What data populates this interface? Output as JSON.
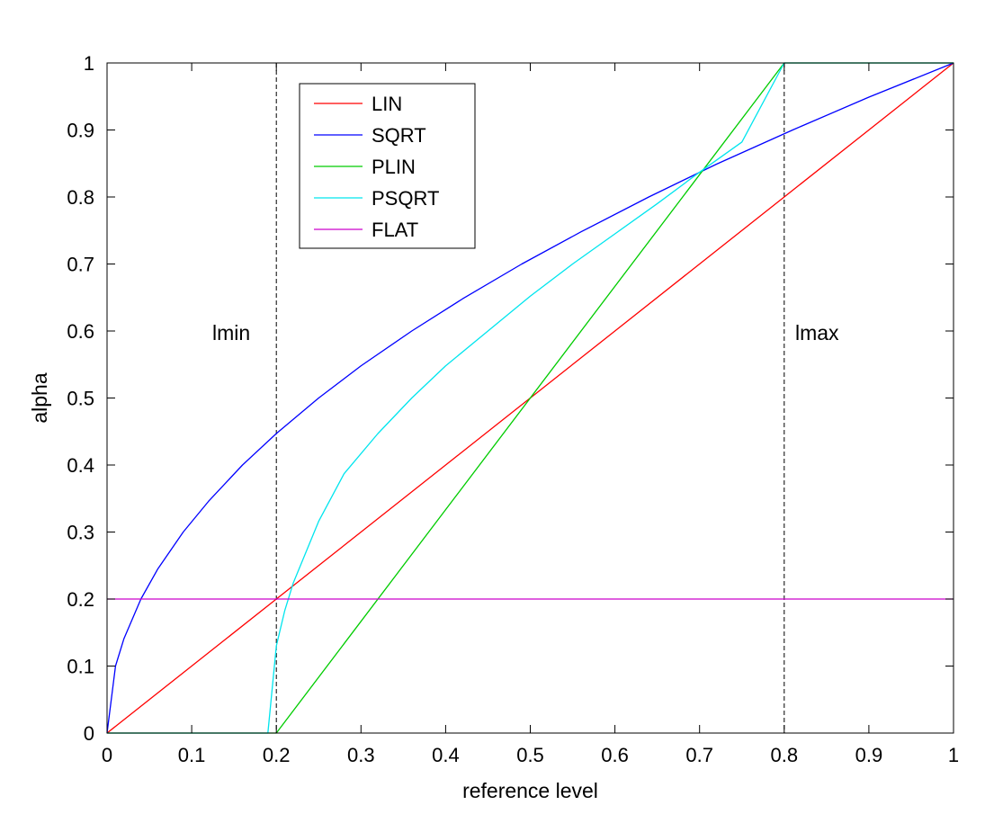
{
  "chart_data": {
    "type": "line",
    "title": "",
    "xlabel": "reference level",
    "ylabel": "alpha",
    "xlim": [
      0,
      1
    ],
    "ylim": [
      0,
      1
    ],
    "grid": false,
    "legend_position": "top-left",
    "x_ticks": [
      0,
      0.1,
      0.2,
      0.3,
      0.4,
      0.5,
      0.6,
      0.7,
      0.8,
      0.9,
      1
    ],
    "x_tick_labels": [
      "0",
      "0.1",
      "0.2",
      "0.3",
      "0.4",
      "0.5",
      "0.6",
      "0.7",
      "0.8",
      "0.9",
      "1"
    ],
    "y_ticks": [
      0,
      0.1,
      0.2,
      0.3,
      0.4,
      0.5,
      0.6,
      0.7,
      0.8,
      0.9,
      1
    ],
    "y_tick_labels": [
      "0",
      "0.1",
      "0.2",
      "0.3",
      "0.4",
      "0.5",
      "0.6",
      "0.7",
      "0.8",
      "0.9",
      "1"
    ],
    "vertical_lines": [
      {
        "x": 0.2,
        "label": "lmin",
        "style": "dashed"
      },
      {
        "x": 0.8,
        "label": "lmax",
        "style": "dashed"
      }
    ],
    "series": [
      {
        "name": "LIN",
        "color": "#ff0000",
        "x": [
          0,
          0.1,
          0.2,
          0.3,
          0.4,
          0.5,
          0.6,
          0.7,
          0.8,
          0.9,
          1
        ],
        "y": [
          0,
          0.1,
          0.2,
          0.3,
          0.4,
          0.5,
          0.6,
          0.7,
          0.8,
          0.9,
          1
        ]
      },
      {
        "name": "SQRT",
        "color": "#0000ff",
        "x": [
          0,
          0.01,
          0.02,
          0.04,
          0.06,
          0.09,
          0.12,
          0.16,
          0.2,
          0.25,
          0.3,
          0.36,
          0.42,
          0.49,
          0.56,
          0.64,
          0.72,
          0.81,
          0.9,
          1
        ],
        "y": [
          0,
          0.1,
          0.141,
          0.2,
          0.245,
          0.3,
          0.346,
          0.4,
          0.447,
          0.5,
          0.548,
          0.6,
          0.648,
          0.7,
          0.748,
          0.8,
          0.849,
          0.9,
          0.949,
          1
        ]
      },
      {
        "name": "PLIN",
        "color": "#00cc00",
        "x": [
          0,
          0.2,
          0.8,
          1
        ],
        "y": [
          0,
          0,
          1,
          1
        ]
      },
      {
        "name": "PSQRT",
        "color": "#00e5ee",
        "x": [
          0,
          0.19,
          0.2,
          0.21,
          0.22,
          0.25,
          0.28,
          0.32,
          0.36,
          0.4,
          0.45,
          0.5,
          0.55,
          0.6,
          0.65,
          0.7,
          0.75,
          0.8,
          1
        ],
        "y": [
          0,
          0,
          0.13,
          0.183,
          0.224,
          0.316,
          0.387,
          0.447,
          0.5,
          0.548,
          0.6,
          0.652,
          0.7,
          0.745,
          0.79,
          0.837,
          0.882,
          1,
          1
        ]
      },
      {
        "name": "FLAT",
        "color": "#cc00cc",
        "x": [
          0,
          1
        ],
        "y": [
          0.2,
          0.2
        ]
      }
    ]
  }
}
